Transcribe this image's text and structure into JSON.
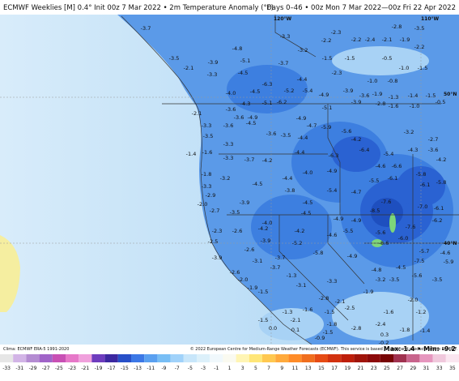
{
  "header": {
    "title": "ECMWF Weeklies [M] 0.4° Init 00z 7 Mar 2022 • 2m Temperature Anomaly (°F)",
    "period": "Days 0–46 • 00z Mon 7 Mar 2022—00z Fri 22 Apr 2022"
  },
  "map": {
    "gridlabels": [
      "120°W",
      "110°W",
      "50°N",
      "40°N"
    ],
    "labels": [
      "-3.7",
      "-2.3",
      "-2.8",
      "-3.5",
      "-2.2",
      "-2.4",
      "-2.1",
      "-1.9",
      "-2.2",
      "-3.3",
      "-2.2",
      "-4.8",
      "-3.2",
      "-3.5",
      "-3.9",
      "-5.1",
      "-3.7",
      "-1.5",
      "-1.5",
      "-0.5",
      "-1.0",
      "-1.5",
      "-2.1",
      "-3.3",
      "-4.5",
      "-4.4",
      "-2.3",
      "-1.0",
      "-0.8",
      "-6.3",
      "-5.2",
      "-5.4",
      "-4.0",
      "-4.5",
      "-4.9",
      "-3.9",
      "-3.6",
      "-1.9",
      "-1.3",
      "-1.4",
      "-1.5",
      "-5.1",
      "-6.2",
      "-4.3",
      "-3.6",
      "-5.1",
      "-3.9",
      "-2.8",
      "-1.6",
      "-1.0",
      "-0.5",
      "-2.1",
      "-3.6",
      "-4.9",
      "-4.9",
      "-3.3",
      "-3.6",
      "-4.5",
      "-3.6",
      "-3.5",
      "-4.7",
      "-5.9",
      "-5.6",
      "-3.2",
      "-3.5",
      "-3.3",
      "-4.4",
      "-4.2",
      "-2.7",
      "-1.4",
      "-1.6",
      "-3.3",
      "-3.7",
      "-4.2",
      "-4.4",
      "-6.3",
      "-6.4",
      "-5.4",
      "-4.3",
      "-3.6",
      "-1.8",
      "-3.2",
      "-4.5",
      "-4.4",
      "-4.0",
      "-4.9",
      "-4.6",
      "-6.6",
      "-5.8",
      "-4.2",
      "-3.3",
      "-2.9",
      "-3.9",
      "-3.8",
      "-4.5",
      "-5.4",
      "-4.7",
      "-5.5",
      "-6.1",
      "-6.1",
      "-5.8",
      "-2.0",
      "-2.7",
      "-3.5",
      "-4.0",
      "-4.5",
      "-4.9",
      "-4.9",
      "-7.6",
      "-8.5",
      "-7.0",
      "-6.1",
      "-2.3",
      "-2.6",
      "-4.2",
      "-4.2",
      "-5.5",
      "-5.6",
      "-7.6",
      "-6.2",
      "-2.5",
      "-3.9",
      "-5.2",
      "-4.6",
      "-8.6",
      "-6.0",
      "-5.7",
      "-4.6",
      "-3.9",
      "-2.6",
      "-3.7",
      "-5.8",
      "-4.9",
      "-7.5",
      "-5.9",
      "-3.1",
      "-3.7",
      "-4.5",
      "-5.6",
      "-4.8",
      "-2.6",
      "-2.0",
      "-1.3",
      "-3.1",
      "-3.3",
      "-3.2",
      "-3.5",
      "-3.5",
      "-1.9",
      "-1.5",
      "-1.9",
      "-2.8",
      "-2.1",
      "-2.0",
      "-1.3",
      "-1.6",
      "-1.5",
      "-2.5",
      "-1.6",
      "-1.2",
      "-1.5",
      "-2.1",
      "-2.4",
      "0.0",
      "0.1",
      "-1.8",
      "-2.8",
      "-1.8",
      "-1.4",
      "-0.9",
      "-1.5",
      "0.3",
      "-0.2"
    ]
  },
  "footer": {
    "clima": "Clima: ECMWF ERA-5 1991-2020",
    "copyright": "© 2022 European Centre for Medium-Range Weather Forecasts (ECMWF). This service is based on data and products of the ECMWF.",
    "maxmin": "Max: 1.4 • Min: -9.2"
  },
  "colorbar": {
    "ticks": [
      -33,
      -31,
      -29,
      -27,
      -25,
      -23,
      -21,
      -19,
      -17,
      -15,
      -13,
      -11,
      -9,
      -7,
      -5,
      -3,
      -1,
      1,
      3,
      5,
      7,
      9,
      11,
      13,
      15,
      17,
      19,
      21,
      23,
      25,
      27,
      29,
      31,
      33,
      35
    ],
    "colors": [
      "#e6e6e6",
      "#d2b4e6",
      "#b48cd2",
      "#a064c8",
      "#c850b4",
      "#e678c8",
      "#f0a0dc",
      "#6e3cbe",
      "#3c28a0",
      "#2850c8",
      "#3c78e6",
      "#5aa0f0",
      "#78bef5",
      "#a0d2fa",
      "#c8e6fa",
      "#dcf0fa",
      "#f0f8fc",
      "#fafaf0",
      "#fff5b4",
      "#ffe678",
      "#ffc850",
      "#ffaa3c",
      "#ff8c28",
      "#f06e1e",
      "#e64b14",
      "#d2320f",
      "#be1e0a",
      "#a0140a",
      "#8c0a0a",
      "#780505",
      "#a03250",
      "#c8648c",
      "#e696be",
      "#f0c8dc",
      "#fae6f0"
    ]
  }
}
